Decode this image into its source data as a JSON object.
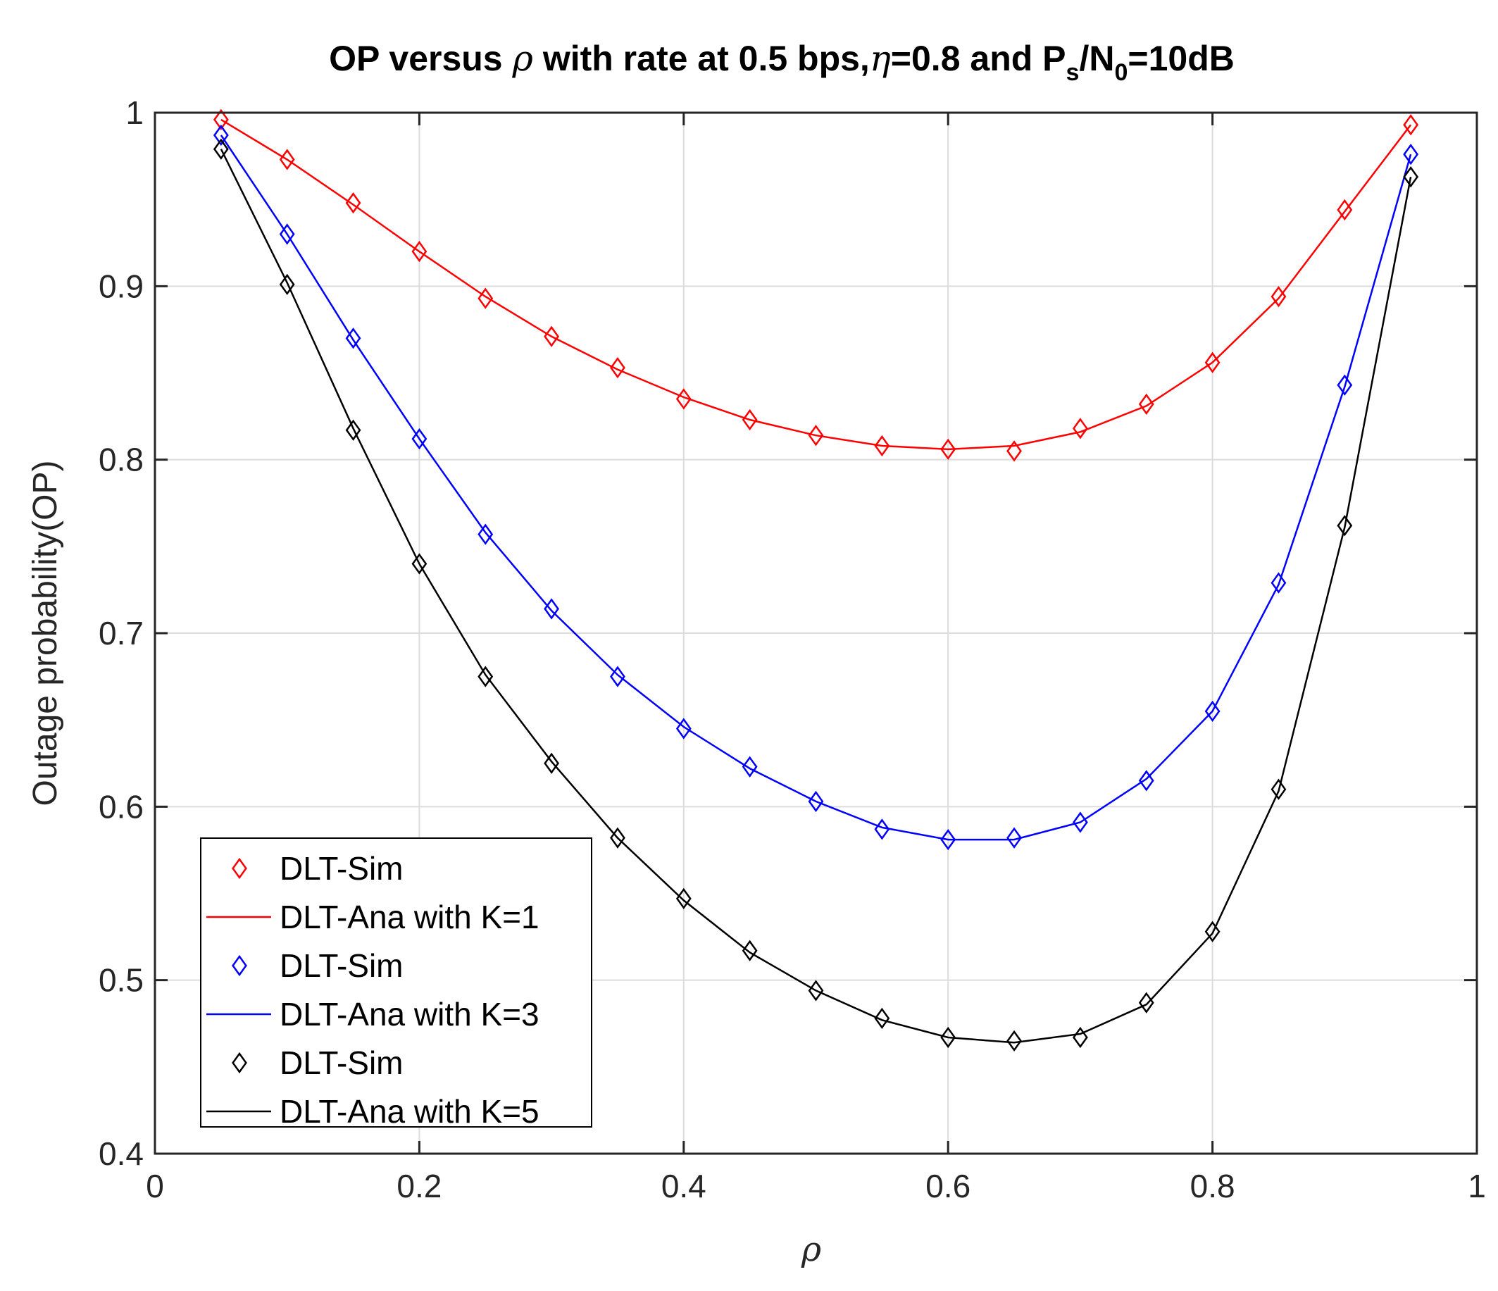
{
  "chart_data": {
    "type": "line",
    "title": {
      "part1": "OP versus ",
      "rho": "ρ",
      "part2": " with rate at 0.5 bps,",
      "eta": "η",
      "part3": "=0.8 and P",
      "sub_s": "s",
      "part4": "/N",
      "sub_0": "0",
      "part5": "=10dB"
    },
    "xlabel": "ρ",
    "ylabel": "Outage probability(OP)",
    "xlim": [
      0,
      1
    ],
    "ylim": [
      0.4,
      1
    ],
    "xticks": [
      0,
      0.2,
      0.4,
      0.6,
      0.8,
      1
    ],
    "xtick_labels": [
      "0",
      "0.2",
      "0.4",
      "0.6",
      "0.8",
      "1"
    ],
    "yticks": [
      0.4,
      0.5,
      0.6,
      0.7,
      0.8,
      0.9,
      1
    ],
    "ytick_labels": [
      "0.4",
      "0.5",
      "0.6",
      "0.7",
      "0.8",
      "0.9",
      "1"
    ],
    "grid": true,
    "legend_position": "bottom-left",
    "x": [
      0.05,
      0.1,
      0.15,
      0.2,
      0.25,
      0.3,
      0.35,
      0.4,
      0.45,
      0.5,
      0.55,
      0.6,
      0.65,
      0.7,
      0.75,
      0.8,
      0.85,
      0.9,
      0.95
    ],
    "series": [
      {
        "name": "K=1",
        "color": "#ff0000",
        "sim_label": "DLT-Sim",
        "ana_label": "DLT-Ana with K=1",
        "sim": [
          0.996,
          0.973,
          0.948,
          0.92,
          0.893,
          0.871,
          0.853,
          0.835,
          0.823,
          0.814,
          0.808,
          0.806,
          0.805,
          0.818,
          0.832,
          0.856,
          0.894,
          0.944,
          0.993
        ],
        "ana": [
          0.996,
          0.973,
          0.947,
          0.92,
          0.894,
          0.871,
          0.852,
          0.836,
          0.823,
          0.814,
          0.808,
          0.806,
          0.808,
          0.816,
          0.831,
          0.856,
          0.893,
          0.943,
          0.993
        ]
      },
      {
        "name": "K=3",
        "color": "#0000ff",
        "sim_label": "DLT-Sim",
        "ana_label": "DLT-Ana with K=3",
        "sim": [
          0.987,
          0.93,
          0.87,
          0.812,
          0.757,
          0.714,
          0.675,
          0.645,
          0.623,
          0.603,
          0.587,
          0.581,
          0.582,
          0.591,
          0.615,
          0.655,
          0.729,
          0.843,
          0.976
        ],
        "ana": [
          0.987,
          0.93,
          0.869,
          0.812,
          0.758,
          0.713,
          0.676,
          0.646,
          0.622,
          0.603,
          0.588,
          0.581,
          0.581,
          0.591,
          0.616,
          0.655,
          0.728,
          0.842,
          0.976
        ]
      },
      {
        "name": "K=5",
        "color": "#000000",
        "sim_label": "DLT-Sim",
        "ana_label": "DLT-Ana with K=5",
        "sim": [
          0.979,
          0.901,
          0.817,
          0.74,
          0.675,
          0.625,
          0.582,
          0.547,
          0.517,
          0.494,
          0.478,
          0.467,
          0.465,
          0.467,
          0.487,
          0.528,
          0.61,
          0.762,
          0.963
        ],
        "ana": [
          0.979,
          0.902,
          0.818,
          0.74,
          0.676,
          0.626,
          0.582,
          0.546,
          0.516,
          0.494,
          0.477,
          0.467,
          0.464,
          0.469,
          0.486,
          0.527,
          0.609,
          0.761,
          0.963
        ]
      }
    ]
  }
}
